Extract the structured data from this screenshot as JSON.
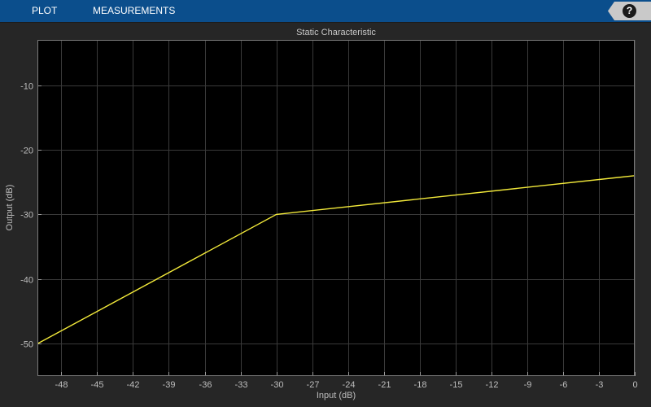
{
  "toolstrip": {
    "tabs": [
      {
        "label": "PLOT"
      },
      {
        "label": "MEASUREMENTS"
      }
    ],
    "help_label": "?"
  },
  "colors": {
    "background": "#262626",
    "axes_background": "#000000",
    "grid": "#3a3a3a",
    "line": "#f2e93a",
    "toolstrip": "#0b4e8c"
  },
  "chart_data": {
    "type": "line",
    "title": "Static Characteristic",
    "xlabel": "Input (dB)",
    "ylabel": "Output (dB)",
    "xlim": [
      -50,
      0
    ],
    "ylim": [
      -55,
      -3
    ],
    "xticks": [
      -48,
      -45,
      -42,
      -39,
      -36,
      -33,
      -30,
      -27,
      -24,
      -21,
      -18,
      -15,
      -12,
      -9,
      -6,
      -3,
      0
    ],
    "yticks": [
      -50,
      -40,
      -30,
      -20,
      -10
    ],
    "grid": true,
    "series": [
      {
        "x": [
          -50,
          -30,
          0
        ],
        "y": [
          -50,
          -30,
          -24
        ]
      }
    ]
  }
}
